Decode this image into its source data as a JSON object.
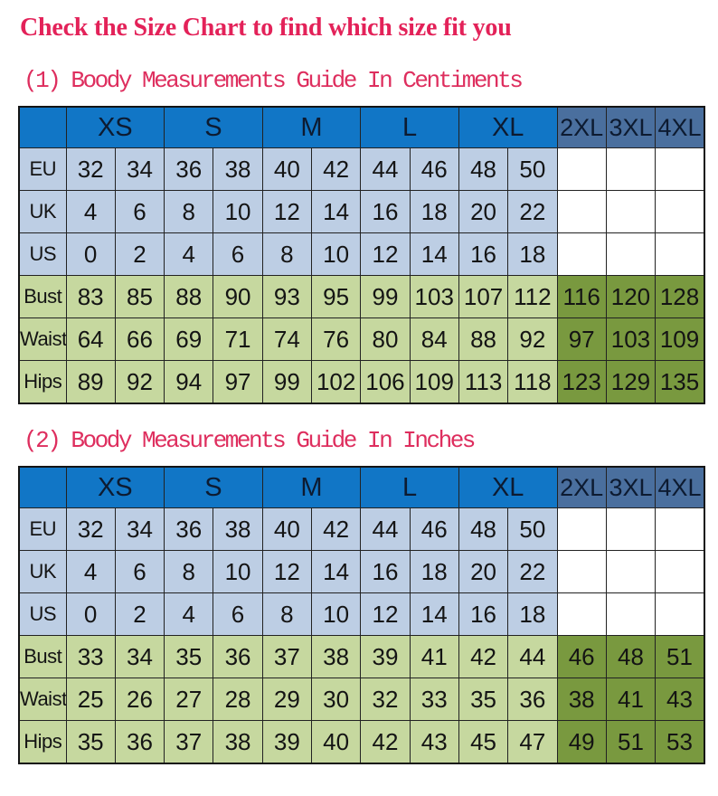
{
  "title": "Check the Size Chart to find which size fit you",
  "colors": {
    "title_pink": "#E32259",
    "section_title_pink": "#DE2E5E",
    "header_blue": "#1176C6",
    "header_extended_blue": "#4A6F9E",
    "row_light_blue": "#BDCEE4",
    "row_light_green": "#C6D89F",
    "row_dark_green": "#79993F",
    "empty_cell_white": "#FFFFFF",
    "grid_line": "#222222"
  },
  "size_headers": [
    {
      "label": "XS",
      "span": 2,
      "variant": "primary"
    },
    {
      "label": "S",
      "span": 2,
      "variant": "primary"
    },
    {
      "label": "M",
      "span": 2,
      "variant": "primary"
    },
    {
      "label": "L",
      "span": 2,
      "variant": "primary"
    },
    {
      "label": "XL",
      "span": 2,
      "variant": "primary"
    },
    {
      "label": "2XL",
      "span": 1,
      "variant": "extended"
    },
    {
      "label": "3XL",
      "span": 1,
      "variant": "extended"
    },
    {
      "label": "4XL",
      "span": 1,
      "variant": "extended"
    }
  ],
  "sections": [
    {
      "id": "centimeters",
      "title": "(1) Boody Measurements Guide In Centiments",
      "rows": [
        {
          "label": "EU",
          "group": "blue",
          "values": [
            "32",
            "34",
            "36",
            "38",
            "40",
            "42",
            "44",
            "46",
            "48",
            "50",
            "",
            "",
            ""
          ]
        },
        {
          "label": "UK",
          "group": "blue",
          "values": [
            "4",
            "6",
            "8",
            "10",
            "12",
            "14",
            "16",
            "18",
            "20",
            "22",
            "",
            "",
            ""
          ]
        },
        {
          "label": "US",
          "group": "blue",
          "values": [
            "0",
            "2",
            "4",
            "6",
            "8",
            "10",
            "12",
            "14",
            "16",
            "18",
            "",
            "",
            ""
          ]
        },
        {
          "label": "Bust",
          "group": "green",
          "values": [
            "83",
            "85",
            "88",
            "90",
            "93",
            "95",
            "99",
            "103",
            "107",
            "112",
            "116",
            "120",
            "128"
          ]
        },
        {
          "label": "Waist",
          "group": "green",
          "values": [
            "64",
            "66",
            "69",
            "71",
            "74",
            "76",
            "80",
            "84",
            "88",
            "92",
            "97",
            "103",
            "109"
          ]
        },
        {
          "label": "Hips",
          "group": "green",
          "values": [
            "89",
            "92",
            "94",
            "97",
            "99",
            "102",
            "106",
            "109",
            "113",
            "118",
            "123",
            "129",
            "135"
          ]
        }
      ]
    },
    {
      "id": "inches",
      "title": "(2) Boody Measurements Guide In Inches",
      "rows": [
        {
          "label": "EU",
          "group": "blue",
          "values": [
            "32",
            "34",
            "36",
            "38",
            "40",
            "42",
            "44",
            "46",
            "48",
            "50",
            "",
            "",
            ""
          ]
        },
        {
          "label": "UK",
          "group": "blue",
          "values": [
            "4",
            "6",
            "8",
            "10",
            "12",
            "14",
            "16",
            "18",
            "20",
            "22",
            "",
            "",
            ""
          ]
        },
        {
          "label": "US",
          "group": "blue",
          "values": [
            "0",
            "2",
            "4",
            "6",
            "8",
            "10",
            "12",
            "14",
            "16",
            "18",
            "",
            "",
            ""
          ]
        },
        {
          "label": "Bust",
          "group": "green",
          "values": [
            "33",
            "34",
            "35",
            "36",
            "37",
            "38",
            "39",
            "41",
            "42",
            "44",
            "46",
            "48",
            "51"
          ]
        },
        {
          "label": "Waist",
          "group": "green",
          "values": [
            "25",
            "26",
            "27",
            "28",
            "29",
            "30",
            "32",
            "33",
            "35",
            "36",
            "38",
            "41",
            "43"
          ]
        },
        {
          "label": "Hips",
          "group": "green",
          "values": [
            "35",
            "36",
            "37",
            "38",
            "39",
            "40",
            "42",
            "43",
            "45",
            "47",
            "49",
            "51",
            "53"
          ]
        }
      ]
    }
  ]
}
